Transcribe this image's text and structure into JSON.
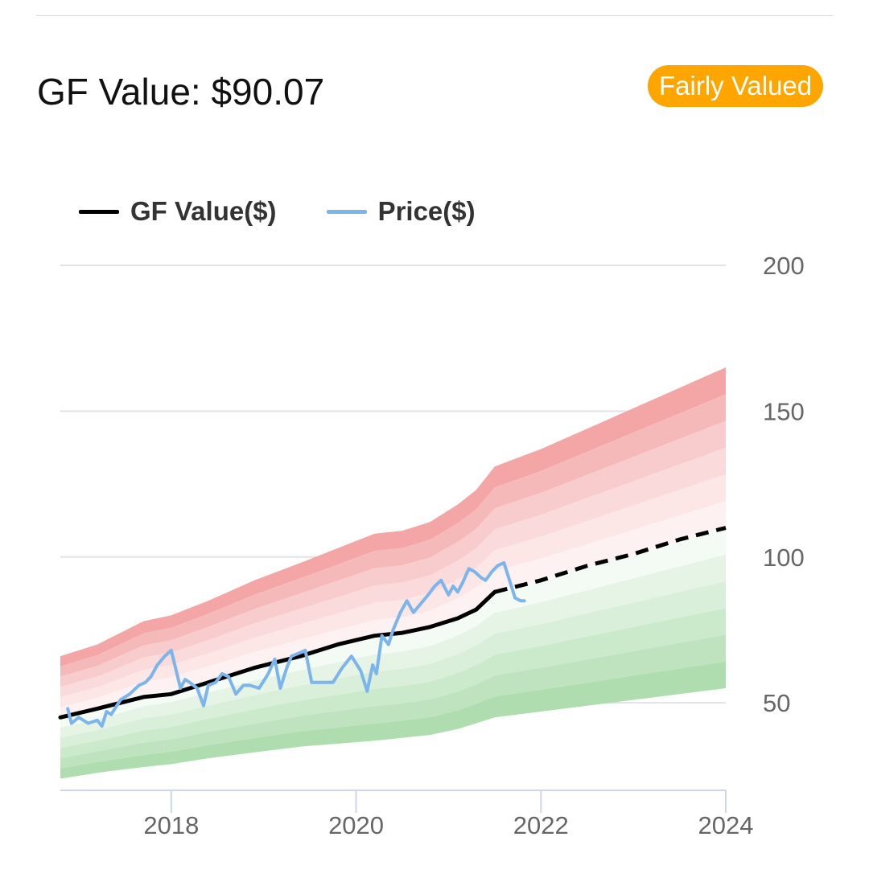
{
  "header": {
    "title": "GF Value: $90.07"
  },
  "badge": {
    "label": "Fairly Valued",
    "color": "#ffa500"
  },
  "chart_data": {
    "type": "area",
    "title": "",
    "xlabel": "",
    "ylabel": "",
    "xlim": [
      2016.8,
      2024.0
    ],
    "ylim": [
      20,
      200
    ],
    "x_ticks": [
      "2018",
      "2020",
      "2022",
      "2024"
    ],
    "y_ticks": [
      "50",
      "100",
      "150",
      "200"
    ],
    "y_axis_side": "right",
    "grid": true,
    "legend_position": "top-left",
    "series": [
      {
        "name": "GF Value($)",
        "color": "#000000",
        "x": [
          2016.8,
          2017.2,
          2017.7,
          2018.0,
          2018.4,
          2018.9,
          2019.4,
          2019.8,
          2020.2,
          2020.5,
          2020.8,
          2021.1,
          2021.3,
          2021.5
        ],
        "values": [
          45,
          48,
          52,
          53,
          57,
          62,
          66,
          70,
          73,
          74,
          76,
          79,
          82,
          88
        ]
      },
      {
        "name": "GF Value($)",
        "style": "dashed",
        "color": "#000000",
        "x": [
          2021.5,
          2022.0,
          2022.5,
          2023.0,
          2023.5,
          2024.0
        ],
        "values": [
          88,
          92,
          97,
          101,
          106,
          110
        ]
      },
      {
        "name": "Price($)",
        "color": "#7cb5ec",
        "x": [
          2016.88,
          2016.92,
          2017.0,
          2017.1,
          2017.2,
          2017.25,
          2017.3,
          2017.35,
          2017.45,
          2017.55,
          2017.65,
          2017.72,
          2017.78,
          2017.85,
          2017.93,
          2018.0,
          2018.1,
          2018.15,
          2018.2,
          2018.28,
          2018.35,
          2018.4,
          2018.48,
          2018.55,
          2018.62,
          2018.7,
          2018.78,
          2018.85,
          2018.95,
          2019.05,
          2019.12,
          2019.18,
          2019.25,
          2019.3,
          2019.38,
          2019.45,
          2019.52,
          2019.58,
          2019.65,
          2019.75,
          2019.85,
          2019.95,
          2020.05,
          2020.12,
          2020.18,
          2020.22,
          2020.28,
          2020.35,
          2020.4,
          2020.48,
          2020.55,
          2020.62,
          2020.7,
          2020.78,
          2020.85,
          2020.92,
          2021.0,
          2021.05,
          2021.1,
          2021.15,
          2021.22,
          2021.28,
          2021.35,
          2021.4,
          2021.47,
          2021.53,
          2021.6,
          2021.65,
          2021.72,
          2021.78,
          2021.82
        ],
        "values": [
          48,
          43,
          45,
          43,
          44,
          42,
          47,
          46,
          51,
          53,
          56,
          57,
          59,
          63,
          66,
          68,
          55,
          58,
          57,
          55,
          49,
          56,
          57,
          60,
          59,
          53,
          56,
          56,
          55,
          60,
          65,
          55,
          62,
          66,
          67,
          68,
          57,
          57,
          57,
          57,
          62,
          66,
          61,
          54,
          63,
          60,
          73,
          70,
          75,
          81,
          85,
          81,
          84,
          87,
          90,
          92,
          87,
          90,
          88,
          91,
          96,
          95,
          93,
          92,
          95,
          97,
          98,
          93,
          86,
          85,
          85
        ]
      }
    ],
    "bands": {
      "x": [
        2016.8,
        2017.2,
        2017.7,
        2018.0,
        2018.4,
        2018.9,
        2019.4,
        2019.8,
        2020.2,
        2020.5,
        2020.8,
        2021.1,
        2021.3,
        2021.5,
        2022.0,
        2022.5,
        2023.0,
        2023.5,
        2024.0
      ],
      "upper": [
        66,
        70,
        78,
        80,
        85,
        92,
        98,
        103,
        108,
        109,
        112,
        118,
        123,
        131,
        137,
        144,
        151,
        158,
        165
      ],
      "lower": [
        24,
        26,
        28,
        29,
        31,
        33,
        35,
        36,
        37,
        38,
        39,
        41,
        43,
        45,
        47,
        49,
        51,
        53,
        55
      ],
      "colors": [
        "#f4a5a5",
        "#f5b9b9",
        "#f8cccc",
        "#fadada",
        "#fce6e6",
        "#fdf1f1",
        "#f4faf4",
        "#e6f4e6",
        "#d9efd9",
        "#cbe9cb",
        "#bee3be",
        "#b0ddb0"
      ]
    }
  }
}
